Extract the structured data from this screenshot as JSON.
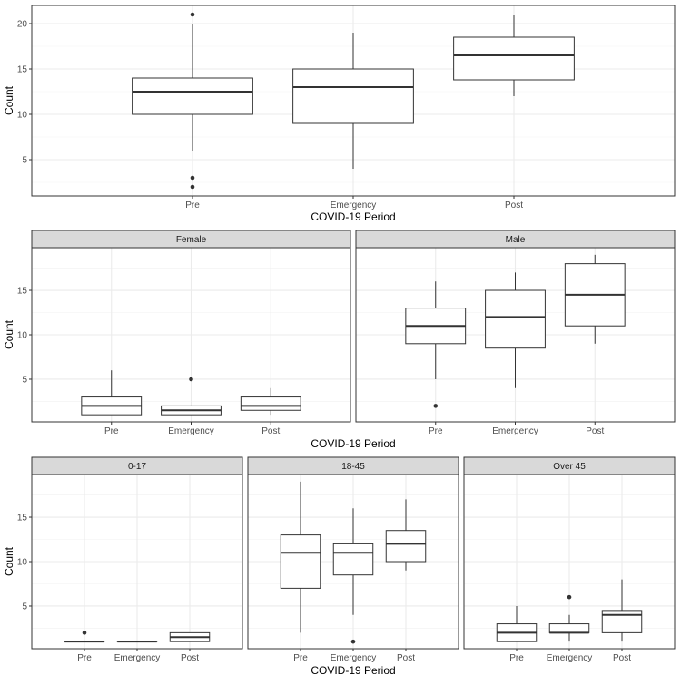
{
  "chart_data": [
    {
      "type": "boxplot",
      "title": "",
      "xlabel": "COVID-19 Period",
      "ylabel": "Count",
      "ylim": [
        1.0,
        22.0
      ],
      "yticks": [
        5,
        10,
        15,
        20
      ],
      "ytick_labels": [
        "5",
        "10",
        "15",
        "20"
      ],
      "grid": true,
      "panels": [
        {
          "strip": "",
          "categories": [
            "Pre",
            "Emergency",
            "Post"
          ],
          "boxes": [
            {
              "q1": 10,
              "median": 12.5,
              "q3": 14,
              "whisker_low": 6,
              "whisker_high": 20,
              "outliers": [
                21,
                3,
                2
              ]
            },
            {
              "q1": 9,
              "median": 13,
              "q3": 15,
              "whisker_low": 4,
              "whisker_high": 19,
              "outliers": []
            },
            {
              "q1": 13.8,
              "median": 16.5,
              "q3": 18.5,
              "whisker_low": 12,
              "whisker_high": 21,
              "outliers": []
            }
          ]
        }
      ]
    },
    {
      "type": "boxplot",
      "title": "",
      "xlabel": "COVID-19 Period",
      "ylabel": "Count",
      "ylim": [
        0.2,
        19.8
      ],
      "yticks": [
        5,
        10,
        15
      ],
      "ytick_labels": [
        "5",
        "10",
        "15"
      ],
      "grid": true,
      "panels": [
        {
          "strip": "Female",
          "categories": [
            "Pre",
            "Emergency",
            "Post"
          ],
          "boxes": [
            {
              "q1": 1,
              "median": 2,
              "q3": 3,
              "whisker_low": 1,
              "whisker_high": 6,
              "outliers": []
            },
            {
              "q1": 1,
              "median": 1.5,
              "q3": 2,
              "whisker_low": 1,
              "whisker_high": 2,
              "outliers": [
                5
              ]
            },
            {
              "q1": 1.5,
              "median": 2,
              "q3": 3,
              "whisker_low": 1,
              "whisker_high": 4,
              "outliers": []
            }
          ]
        },
        {
          "strip": "Male",
          "categories": [
            "Pre",
            "Emergency",
            "Post"
          ],
          "boxes": [
            {
              "q1": 9,
              "median": 11,
              "q3": 13,
              "whisker_low": 5,
              "whisker_high": 16,
              "outliers": [
                2
              ]
            },
            {
              "q1": 8.5,
              "median": 12,
              "q3": 15,
              "whisker_low": 4,
              "whisker_high": 17,
              "outliers": []
            },
            {
              "q1": 11,
              "median": 14.5,
              "q3": 18,
              "whisker_low": 9,
              "whisker_high": 19,
              "outliers": []
            }
          ]
        }
      ]
    },
    {
      "type": "boxplot",
      "title": "",
      "xlabel": "COVID-19 Period",
      "ylabel": "Count",
      "ylim": [
        0.2,
        19.8
      ],
      "yticks": [
        5,
        10,
        15
      ],
      "ytick_labels": [
        "5",
        "10",
        "15"
      ],
      "grid": true,
      "panels": [
        {
          "strip": "0-17",
          "categories": [
            "Pre",
            "Emergency",
            "Post"
          ],
          "boxes": [
            {
              "q1": 1,
              "median": 1,
              "q3": 1,
              "whisker_low": 1,
              "whisker_high": 1,
              "outliers": [
                2
              ]
            },
            {
              "q1": 1,
              "median": 1,
              "q3": 1,
              "whisker_low": 1,
              "whisker_high": 1,
              "outliers": []
            },
            {
              "q1": 1,
              "median": 1.5,
              "q3": 2,
              "whisker_low": 1,
              "whisker_high": 2,
              "outliers": []
            }
          ]
        },
        {
          "strip": "18-45",
          "categories": [
            "Pre",
            "Emergency",
            "Post"
          ],
          "boxes": [
            {
              "q1": 7,
              "median": 11,
              "q3": 13,
              "whisker_low": 2,
              "whisker_high": 19,
              "outliers": []
            },
            {
              "q1": 8.5,
              "median": 11,
              "q3": 12,
              "whisker_low": 4,
              "whisker_high": 16,
              "outliers": [
                1
              ]
            },
            {
              "q1": 10,
              "median": 12,
              "q3": 13.5,
              "whisker_low": 9,
              "whisker_high": 17,
              "outliers": []
            }
          ]
        },
        {
          "strip": "Over 45",
          "categories": [
            "Pre",
            "Emergency",
            "Post"
          ],
          "boxes": [
            {
              "q1": 1,
              "median": 2,
              "q3": 3,
              "whisker_low": 1,
              "whisker_high": 5,
              "outliers": []
            },
            {
              "q1": 2,
              "median": 2,
              "q3": 3,
              "whisker_low": 1,
              "whisker_high": 4,
              "outliers": [
                6
              ]
            },
            {
              "q1": 2,
              "median": 4,
              "q3": 4.5,
              "whisker_low": 1,
              "whisker_high": 8,
              "outliers": []
            }
          ]
        }
      ]
    }
  ]
}
